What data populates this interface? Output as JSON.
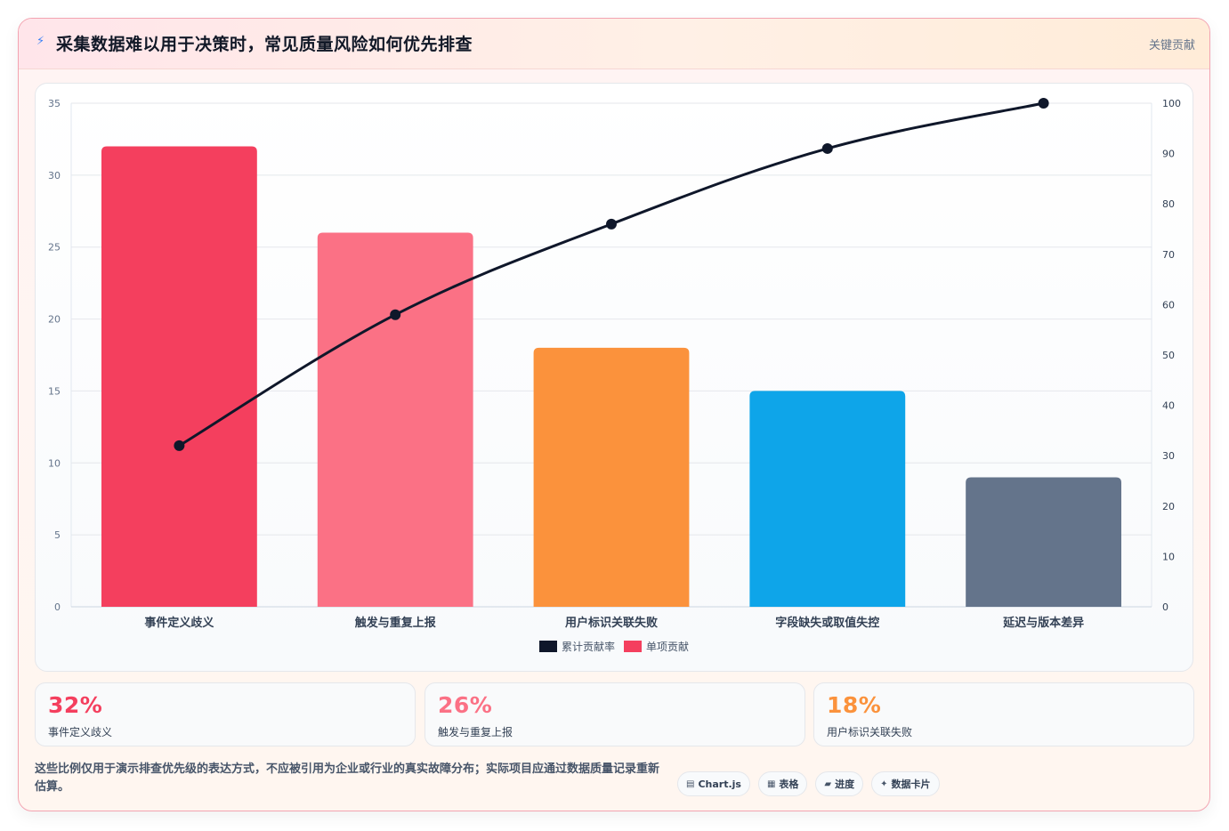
{
  "header": {
    "title": "采集数据难以用于决策时，常见质量风险如何优先排查",
    "link": "关键贡献",
    "icon": "lightning-icon"
  },
  "chart_data": {
    "type": "bar",
    "categories": [
      "事件定义歧义",
      "触发与重复上报",
      "用户标识关联失败",
      "字段缺失或取值失控",
      "延迟与版本差异"
    ],
    "series": [
      {
        "name": "单项贡献",
        "type": "bar",
        "values": [
          32,
          26,
          18,
          15,
          9
        ],
        "colors": [
          "#f43f5e",
          "#fb7185",
          "#fb923c",
          "#0ea5e9",
          "#64748b"
        ]
      },
      {
        "name": "累计贡献率",
        "type": "line",
        "axis": "right",
        "values": [
          32,
          58,
          76,
          91,
          100
        ],
        "color": "#0f172a"
      }
    ],
    "ylim_left": [
      0,
      35
    ],
    "ylim_right": [
      0,
      100
    ],
    "yticks_left": [
      0,
      5,
      10,
      15,
      20,
      25,
      30,
      35
    ],
    "yticks_right": [
      0,
      10,
      20,
      30,
      40,
      50,
      60,
      70,
      80,
      90,
      100
    ],
    "legend": [
      "累计贡献率",
      "单项贡献"
    ],
    "legend_colors": [
      "#0f172a",
      "#f43f5e"
    ],
    "legend_position": "bottom",
    "grid": true
  },
  "stats": [
    {
      "value": "32%",
      "label": "事件定义歧义",
      "color": "#f43f5e"
    },
    {
      "value": "26%",
      "label": "触发与重复上报",
      "color": "#fb7185"
    },
    {
      "value": "18%",
      "label": "用户标识关联失败",
      "color": "#fb923c"
    }
  ],
  "note": "这些比例仅用于演示排查优先级的表达方式，不应被引用为企业或行业的真实故障分布；实际项目应通过数据质量记录重新估算。",
  "tags": [
    {
      "icon": "▤",
      "label": "Chart.js"
    },
    {
      "icon": "▦",
      "label": "表格"
    },
    {
      "icon": "▰",
      "label": "进度"
    },
    {
      "icon": "✦",
      "label": "数据卡片"
    }
  ]
}
